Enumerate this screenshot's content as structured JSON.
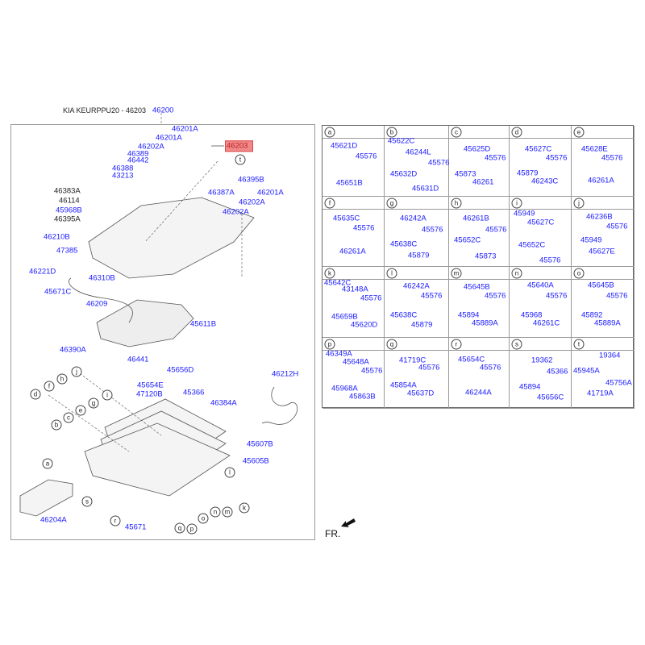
{
  "title": "KIA KEURPPU20 - 46203",
  "highlight_color": "#f08a8a",
  "label_color": "#1a1aff",
  "main_labels": [
    {
      "text": "46200"
    },
    {
      "text": "46201A"
    },
    {
      "text": "46203",
      "highlighted": true
    },
    {
      "text": "46201A"
    },
    {
      "text": "46202A"
    },
    {
      "text": "46389"
    },
    {
      "text": "46442"
    },
    {
      "text": "46388"
    },
    {
      "text": "43213"
    },
    {
      "text": "46383A",
      "black": true
    },
    {
      "text": "46114",
      "black": true
    },
    {
      "text": "45968B"
    },
    {
      "text": "46395A",
      "black": true
    },
    {
      "text": "46210B"
    },
    {
      "text": "47385"
    },
    {
      "text": "46221D"
    },
    {
      "text": "46310B"
    },
    {
      "text": "45671C"
    },
    {
      "text": "46209"
    },
    {
      "text": "46395B"
    },
    {
      "text": "46387A"
    },
    {
      "text": "46201A"
    },
    {
      "text": "46202A"
    },
    {
      "text": "46202A"
    },
    {
      "text": "45611B"
    },
    {
      "text": "46390A"
    },
    {
      "text": "46441"
    },
    {
      "text": "45656D"
    },
    {
      "text": "45654E"
    },
    {
      "text": "47120B"
    },
    {
      "text": "45366"
    },
    {
      "text": "46384A"
    },
    {
      "text": "46212H"
    },
    {
      "text": "45607B"
    },
    {
      "text": "45605B"
    },
    {
      "text": "46204A"
    },
    {
      "text": "45671"
    }
  ],
  "callouts": [
    "t",
    "j",
    "h",
    "f",
    "d",
    "i",
    "g",
    "e",
    "c",
    "b",
    "a",
    "l",
    "k",
    "m",
    "n",
    "o",
    "s",
    "r",
    "q",
    "p"
  ],
  "grid": [
    {
      "key": "a",
      "parts": [
        "45621D",
        "45576",
        "45651B"
      ]
    },
    {
      "key": "b",
      "parts": [
        "45622C",
        "46244L",
        "45576",
        "45632D",
        "45631D"
      ]
    },
    {
      "key": "c",
      "parts": [
        "45625D",
        "45576",
        "45873",
        "46261"
      ]
    },
    {
      "key": "d",
      "parts": [
        "45627C",
        "45576",
        "45879",
        "46243C"
      ]
    },
    {
      "key": "e",
      "parts": [
        "45628E",
        "45576",
        "46261A"
      ]
    },
    {
      "key": "f",
      "parts": [
        "45635C",
        "45576",
        "46261A"
      ]
    },
    {
      "key": "g",
      "parts": [
        "46242A",
        "45576",
        "45638C",
        "45879"
      ]
    },
    {
      "key": "h",
      "parts": [
        "46261B",
        "45576",
        "45652C",
        "45873"
      ]
    },
    {
      "key": "i",
      "parts": [
        "45949",
        "45627C",
        "45652C",
        "45576"
      ]
    },
    {
      "key": "j",
      "parts": [
        "46236B",
        "45576",
        "45949",
        "45627E"
      ]
    },
    {
      "key": "k",
      "parts": [
        "45642C",
        "43148A",
        "45576",
        "45659B",
        "45620D"
      ]
    },
    {
      "key": "l",
      "parts": [
        "46242A",
        "45576",
        "45638C",
        "45879"
      ]
    },
    {
      "key": "m",
      "parts": [
        "45645B",
        "45576",
        "45894",
        "45889A"
      ]
    },
    {
      "key": "n",
      "parts": [
        "45640A",
        "45576",
        "45968",
        "46261C"
      ]
    },
    {
      "key": "o",
      "parts": [
        "45645B",
        "45576",
        "45892",
        "45889A"
      ]
    },
    {
      "key": "p",
      "parts": [
        "46349A",
        "45648A",
        "45576",
        "45968A",
        "45863B"
      ]
    },
    {
      "key": "q",
      "parts": [
        "41719C",
        "45576",
        "45854A",
        "45637D"
      ]
    },
    {
      "key": "r",
      "parts": [
        "45654C",
        "45576",
        "46244A"
      ]
    },
    {
      "key": "s",
      "parts": [
        "19362",
        "45366",
        "45894",
        "45656C"
      ]
    },
    {
      "key": "t",
      "parts": [
        "19364",
        "45945A",
        "45756A",
        "41719A"
      ]
    }
  ],
  "direction_label": "FR."
}
